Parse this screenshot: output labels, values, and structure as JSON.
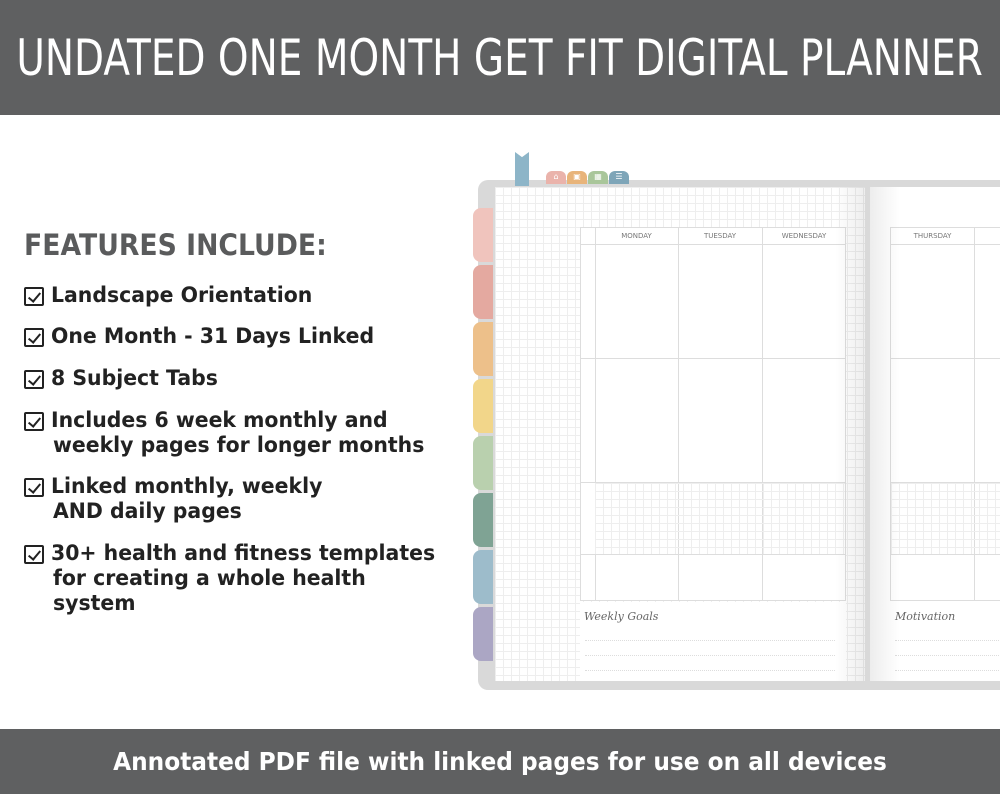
{
  "header": {
    "title": "UNDATED ONE MONTH GET FIT DIGITAL PLANNER"
  },
  "features": {
    "title": "FEATURES INCLUDE:",
    "items": [
      {
        "lines": [
          "Landscape Orientation"
        ]
      },
      {
        "lines": [
          "One Month - 31 Days Linked"
        ]
      },
      {
        "lines": [
          "8 Subject Tabs"
        ]
      },
      {
        "lines": [
          "Includes 6 week monthly and",
          "weekly pages for longer months"
        ]
      },
      {
        "lines": [
          "Linked monthly, weekly",
          "AND daily pages"
        ]
      },
      {
        "lines": [
          "30+ health and fitness templates",
          "for creating a whole health",
          "system"
        ]
      }
    ]
  },
  "planner": {
    "top_tabs": [
      {
        "icon": "home-icon",
        "color": "#eab3ab"
      },
      {
        "icon": "calendar-icon",
        "color": "#e8b47a"
      },
      {
        "icon": "grid-icon",
        "color": "#a9c69a"
      },
      {
        "icon": "list-icon",
        "color": "#7ea5b8"
      }
    ],
    "ribbon_color": "#8db5c8",
    "side_tab_colors": [
      "#f0c4bd",
      "#e4a9a0",
      "#edc08a",
      "#f2d68a",
      "#b9d0ae",
      "#7fa394",
      "#9dbccb",
      "#aba6c4"
    ],
    "left_page": {
      "days": [
        "MONDAY",
        "TUESDAY",
        "WEDNESDAY"
      ],
      "section": "Weekly Goals"
    },
    "right_page": {
      "days": [
        "THURSDAY"
      ],
      "section": "Motivation"
    }
  },
  "footer": {
    "text": "Annotated PDF file with linked pages for use on all devices"
  }
}
